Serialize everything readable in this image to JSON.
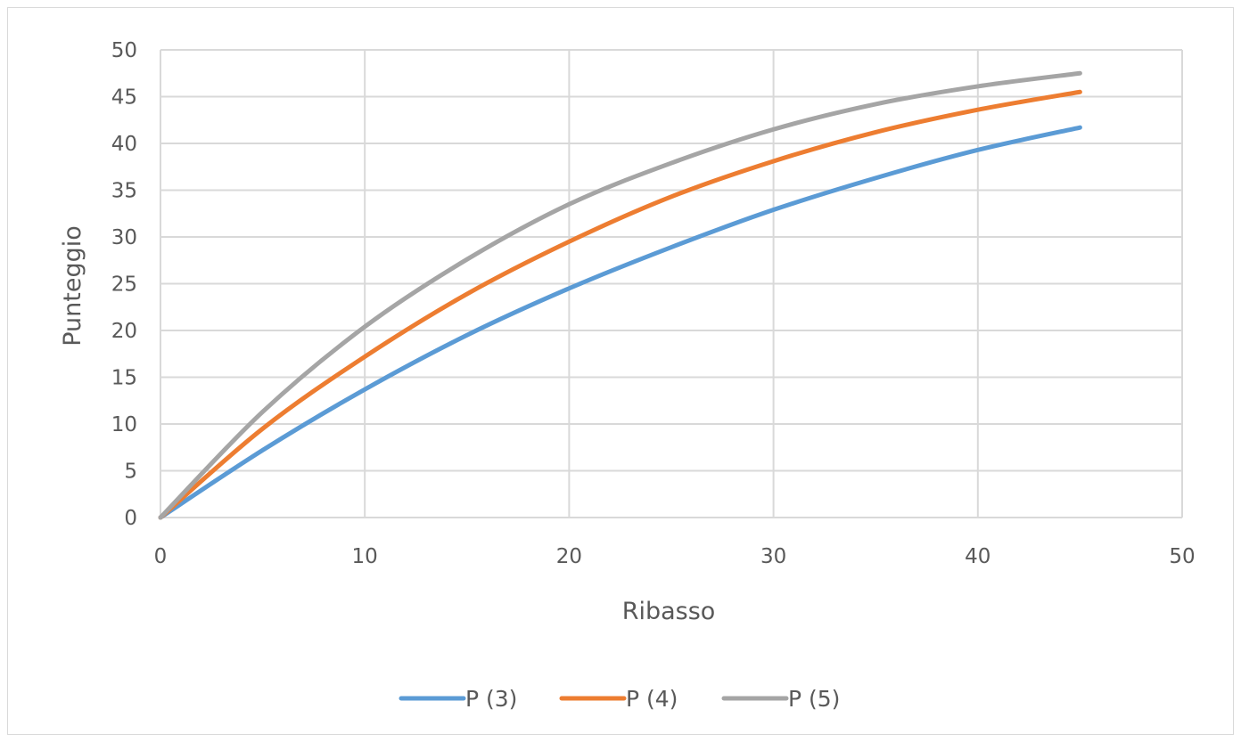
{
  "chart_data": {
    "type": "line",
    "title": "",
    "xlabel": "Ribasso",
    "ylabel": "Punteggio",
    "xlim": [
      0,
      50
    ],
    "ylim": [
      0,
      50
    ],
    "xticks": [
      0,
      10,
      20,
      30,
      40,
      50
    ],
    "yticks": [
      0,
      5,
      10,
      15,
      20,
      25,
      30,
      35,
      40,
      45,
      50
    ],
    "grid": true,
    "legend_position": "bottom",
    "x": [
      0,
      5,
      10,
      15,
      20,
      25,
      30,
      35,
      40,
      45
    ],
    "series": [
      {
        "name": "P (3)",
        "color": "#5b9bd5",
        "values": [
          0,
          7.2,
          13.7,
          19.5,
          24.5,
          28.9,
          32.9,
          36.3,
          39.3,
          41.7
        ]
      },
      {
        "name": "P (4)",
        "color": "#ed7d31",
        "values": [
          0,
          9.5,
          17.2,
          23.9,
          29.5,
          34.3,
          38.1,
          41.2,
          43.6,
          45.5
        ]
      },
      {
        "name": "P (5)",
        "color": "#a5a5a5",
        "values": [
          0,
          11.3,
          20.4,
          27.6,
          33.5,
          37.9,
          41.5,
          44.2,
          46.1,
          47.5
        ]
      }
    ]
  }
}
